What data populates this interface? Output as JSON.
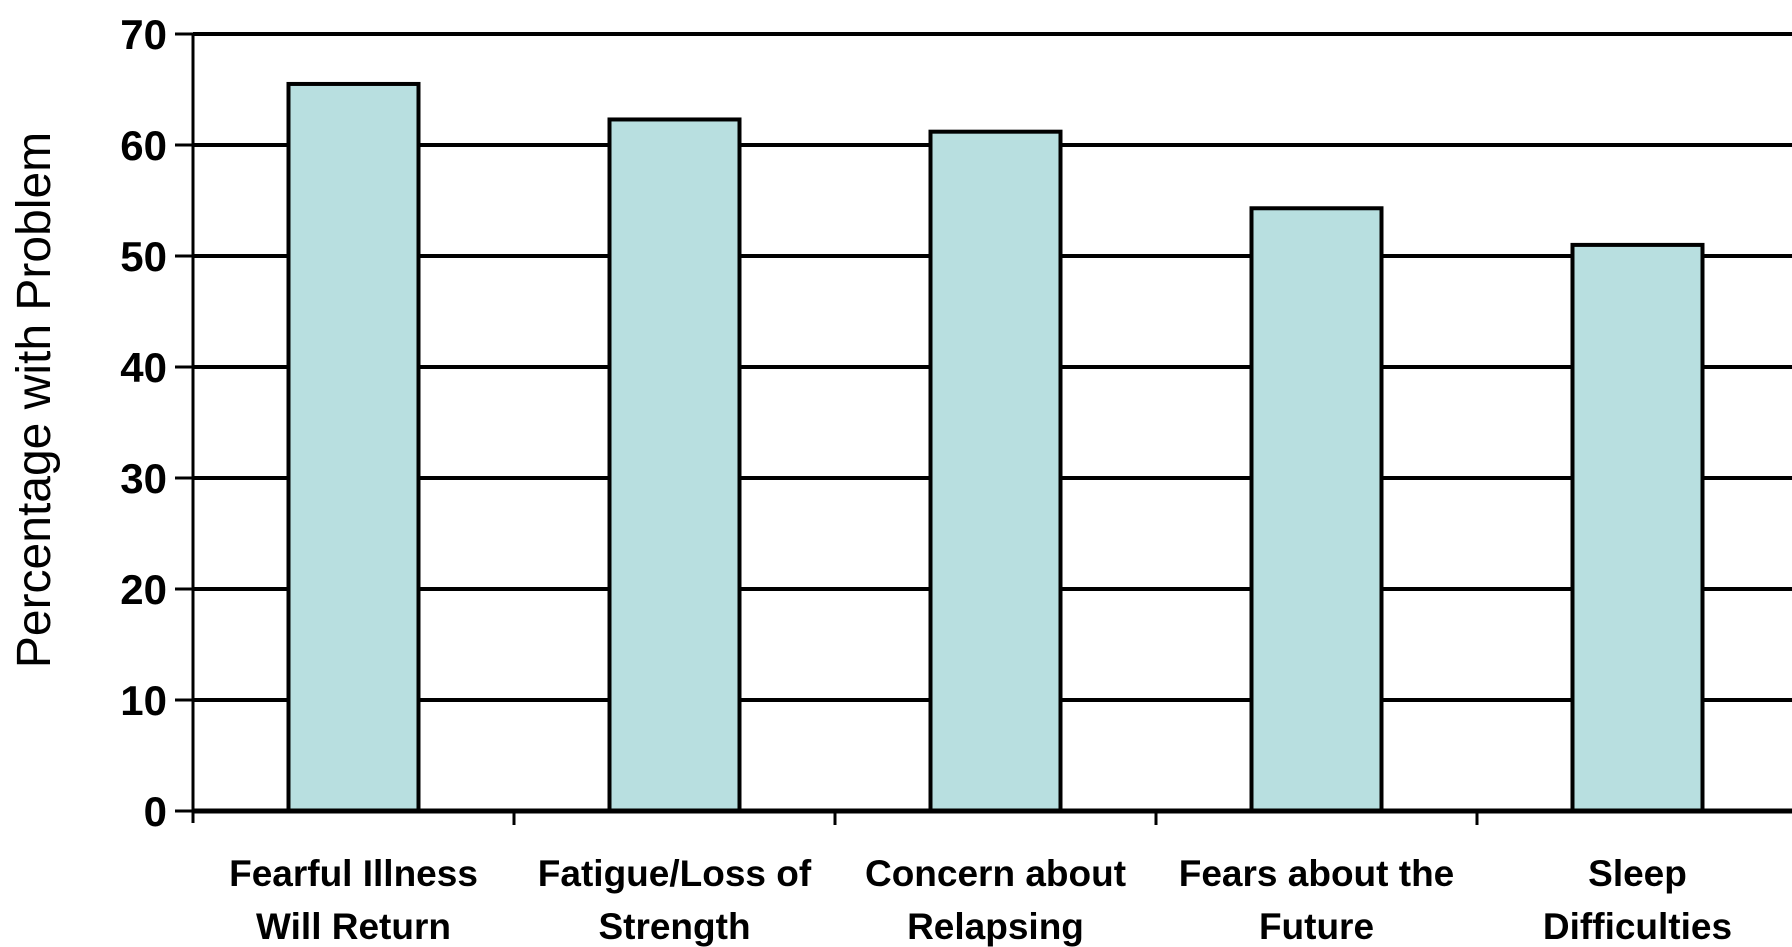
{
  "chart_data": {
    "type": "bar",
    "ylabel": "Percentage with Problem",
    "xlabel": "",
    "ylim": [
      0,
      70
    ],
    "y_ticks": [
      0,
      10,
      20,
      30,
      40,
      50,
      60,
      70
    ],
    "grid": true,
    "categories": [
      [
        "Fearful Illness",
        "Will Return"
      ],
      [
        "Fatigue/Loss of",
        "Strength"
      ],
      [
        "Concern about",
        "Relapsing"
      ],
      [
        "Fears about the",
        "Future"
      ],
      [
        "Sleep",
        "Difficulties"
      ]
    ],
    "values": [
      65.5,
      62.3,
      61.2,
      54.3,
      51.0
    ],
    "colors": {
      "bar": "#b8dfe0",
      "bar_stroke": "#000000",
      "grid": "#000000"
    }
  }
}
